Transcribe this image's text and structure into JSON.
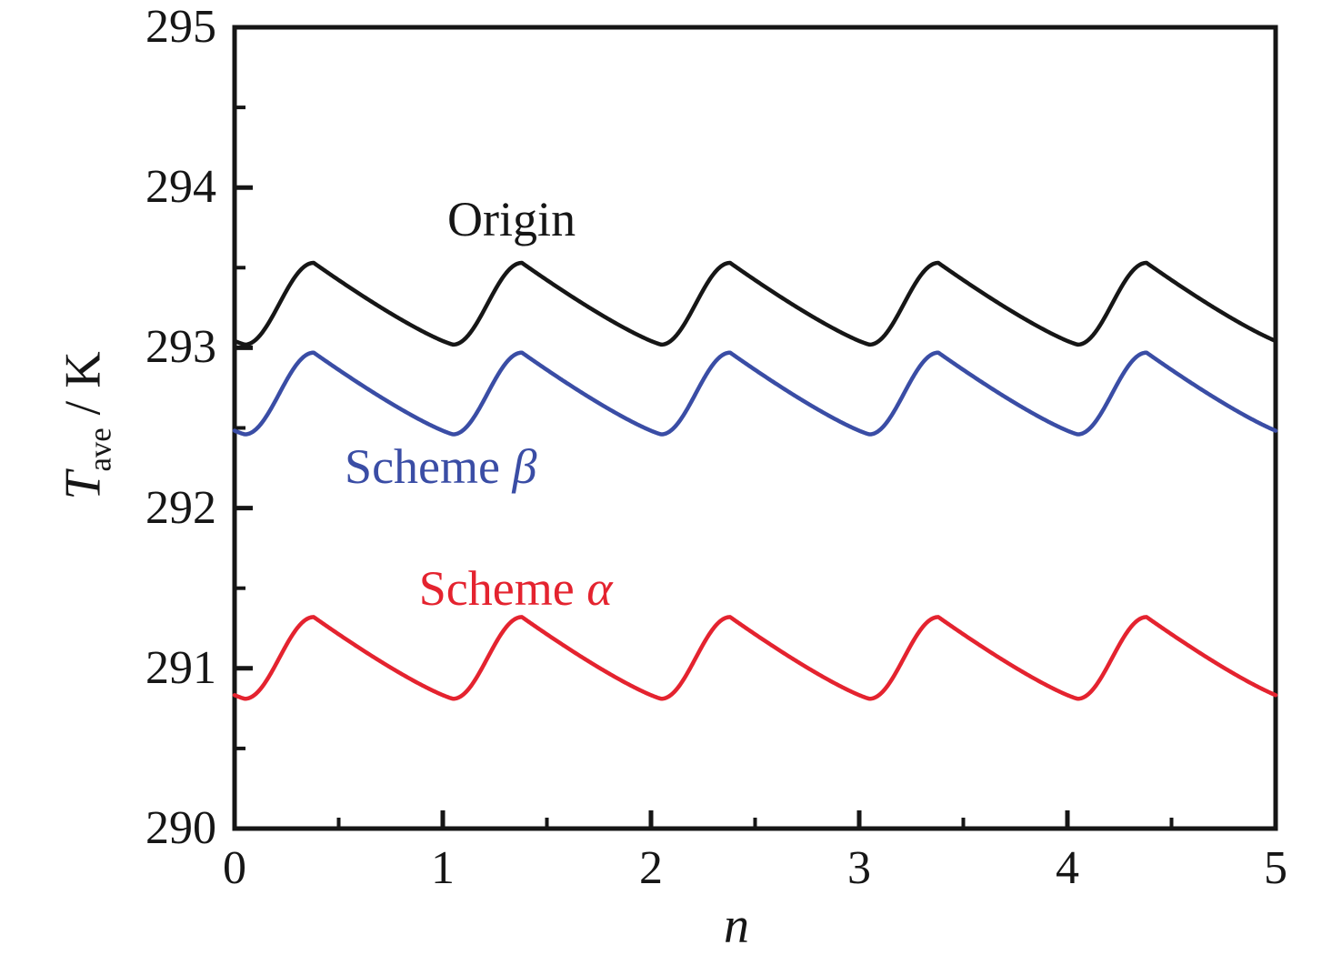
{
  "chart_data": {
    "type": "line",
    "title": "",
    "xlabel": "n",
    "ylabel": {
      "main": "T",
      "sub": "ave",
      "rest": " / K"
    },
    "x_range": [
      0,
      5
    ],
    "y_range": [
      290,
      295
    ],
    "grid": false,
    "frame": true,
    "tick_direction": "in",
    "axis_color": "#161616",
    "x_ticks": [
      {
        "v": 0,
        "label": "0"
      },
      {
        "v": 1,
        "label": "1"
      },
      {
        "v": 2,
        "label": "2"
      },
      {
        "v": 3,
        "label": "3"
      },
      {
        "v": 4,
        "label": "4"
      },
      {
        "v": 5,
        "label": "5"
      }
    ],
    "y_ticks": [
      {
        "v": 290,
        "label": "290"
      },
      {
        "v": 291,
        "label": "291"
      },
      {
        "v": 292,
        "label": "292"
      },
      {
        "v": 293,
        "label": "293"
      },
      {
        "v": 294,
        "label": "294"
      },
      {
        "v": 295,
        "label": "295"
      }
    ],
    "x_minor_ticks": [
      0.5,
      1.5,
      2.5,
      3.5,
      4.5
    ],
    "y_minor_ticks": [
      290.5,
      291.5,
      292.5,
      293.5,
      294.5
    ],
    "legend_position": "inline-annotations",
    "series": [
      {
        "name": "Origin",
        "color": "#161616",
        "period": 1,
        "trough_phase": 0.05,
        "peak_phase": 0.38,
        "trough_value": 293.02,
        "peak_value": 293.53,
        "peaks_n": [
          0.38,
          1.38,
          2.38,
          3.38,
          4.38
        ],
        "troughs_n": [
          0.05,
          1.05,
          2.05,
          3.05,
          4.05
        ],
        "start_point": {
          "n": 0,
          "T": 293.04
        },
        "end_point": {
          "n": 5,
          "T": 293.04
        },
        "annotation": {
          "text": "Origin",
          "x": 1.33,
          "y": 293.8
        }
      },
      {
        "name": "Scheme β",
        "color": "#3a4da5",
        "period": 1,
        "trough_phase": 0.05,
        "peak_phase": 0.38,
        "trough_value": 292.46,
        "peak_value": 292.97,
        "peaks_n": [
          0.38,
          1.38,
          2.38,
          3.38,
          4.38
        ],
        "troughs_n": [
          0.05,
          1.05,
          2.05,
          3.05,
          4.05
        ],
        "start_point": {
          "n": 0,
          "T": 292.48
        },
        "end_point": {
          "n": 5,
          "T": 292.48
        },
        "annotation": {
          "text": "Scheme β",
          "x": 0.99,
          "y": 292.26
        }
      },
      {
        "name": "Scheme α",
        "color": "#e4232f",
        "period": 1,
        "trough_phase": 0.05,
        "peak_phase": 0.38,
        "trough_value": 290.81,
        "peak_value": 291.32,
        "peaks_n": [
          0.38,
          1.38,
          2.38,
          3.38,
          4.38
        ],
        "troughs_n": [
          0.05,
          1.05,
          2.05,
          3.05,
          4.05
        ],
        "start_point": {
          "n": 0,
          "T": 290.83
        },
        "end_point": {
          "n": 5,
          "T": 290.83
        },
        "annotation": {
          "text": "Scheme α",
          "x": 1.35,
          "y": 291.5
        }
      }
    ]
  }
}
